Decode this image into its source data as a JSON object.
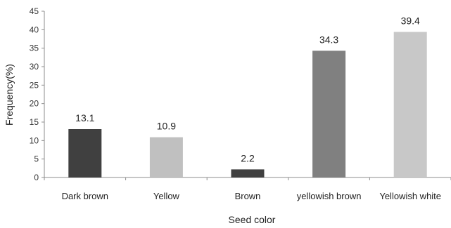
{
  "chart_data": {
    "type": "bar",
    "categories": [
      "Dark brown",
      "Yellow",
      "Brown",
      "yellowish brown",
      "Yellowish white"
    ],
    "values": [
      13.1,
      10.9,
      2.2,
      34.3,
      39.4
    ],
    "value_labels": [
      "13.1",
      "10.9",
      "2.2",
      "34.3",
      "39.4"
    ],
    "colors": [
      "#404040",
      "#c0c0c0",
      "#404040",
      "#808080",
      "#c8c8c8"
    ],
    "xlabel": "Seed color",
    "ylabel": "Frequency(%)",
    "ylim": [
      0,
      45
    ],
    "yticks": [
      0,
      5,
      10,
      15,
      20,
      25,
      30,
      35,
      40,
      45
    ],
    "grid": false,
    "legend": "none"
  }
}
